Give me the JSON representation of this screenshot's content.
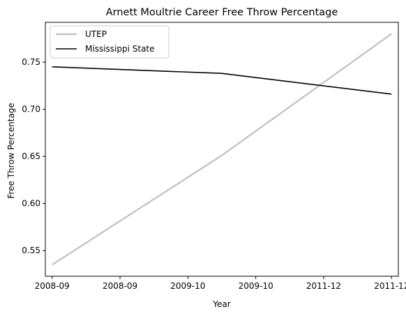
{
  "chart_data": {
    "type": "line",
    "title": "Arnett Moultrie Career Free Throw Percentage",
    "xlabel": "Year",
    "ylabel": "Free Throw Percentage",
    "x_tick_labels": [
      "2008-09",
      "2008-09",
      "2009-10",
      "2009-10",
      "2011-12",
      "2011-12"
    ],
    "y_ticks": [
      0.55,
      0.6,
      0.65,
      0.7,
      0.75
    ],
    "y_tick_labels": [
      "0.55",
      "0.60",
      "0.65",
      "0.70",
      "0.75"
    ],
    "xlim": [
      -0.1,
      5.1
    ],
    "ylim": [
      0.5228,
      0.7922
    ],
    "grid": false,
    "legend_position": "top-left",
    "series": [
      {
        "name": "UTEP",
        "color": "#bfbfbf",
        "x": [
          0,
          2.5,
          5
        ],
        "values": [
          0.535,
          0.651,
          0.78
        ]
      },
      {
        "name": "Mississippi State",
        "color": "#000000",
        "x": [
          0,
          2.5,
          5
        ],
        "values": [
          0.745,
          0.738,
          0.716
        ]
      }
    ]
  }
}
